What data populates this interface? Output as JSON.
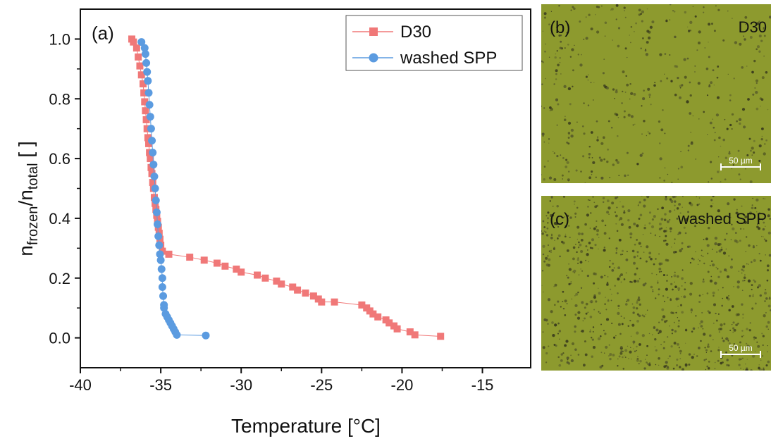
{
  "chart_data": {
    "type": "scatter",
    "panel_label": "(a)",
    "xlabel": "Temperature [°C]",
    "ylabel_parts": [
      "n",
      "frozen",
      "/n",
      "total",
      " [ ]"
    ],
    "xlim": [
      -40,
      -12
    ],
    "ylim": [
      -0.1,
      1.1
    ],
    "xticks": [
      -40,
      -35,
      -30,
      -25,
      -20,
      -15
    ],
    "yticks": [
      0.0,
      0.2,
      0.4,
      0.6,
      0.8,
      1.0
    ],
    "xtick_labels": [
      "-40",
      "-35",
      "-30",
      "-25",
      "-20",
      "-15"
    ],
    "ytick_labels": [
      "0.0",
      "0.2",
      "0.4",
      "0.6",
      "0.8",
      "1.0"
    ],
    "legend_position": "top-right",
    "grid": false,
    "series": [
      {
        "name": "D30",
        "marker": "square",
        "color": "#f07878",
        "x": [
          -36.8,
          -36.7,
          -36.5,
          -36.4,
          -36.3,
          -36.2,
          -36.1,
          -36.05,
          -36.0,
          -35.95,
          -35.9,
          -35.85,
          -35.8,
          -35.75,
          -35.7,
          -35.65,
          -35.6,
          -35.55,
          -35.5,
          -35.45,
          -35.4,
          -35.35,
          -35.3,
          -35.25,
          -35.2,
          -35.15,
          -35.1,
          -35.05,
          -35.0,
          -34.9,
          -34.5,
          -33.2,
          -32.3,
          -31.5,
          -31.0,
          -30.3,
          -30.0,
          -29.0,
          -28.5,
          -27.8,
          -27.5,
          -26.8,
          -26.5,
          -26.0,
          -25.5,
          -25.2,
          -25.0,
          -24.2,
          -22.5,
          -22.2,
          -22.0,
          -21.8,
          -21.5,
          -21.0,
          -20.8,
          -20.5,
          -20.3,
          -19.5,
          -19.2,
          -17.6
        ],
        "y": [
          1.0,
          0.99,
          0.97,
          0.94,
          0.91,
          0.88,
          0.85,
          0.82,
          0.79,
          0.76,
          0.73,
          0.7,
          0.67,
          0.65,
          0.62,
          0.6,
          0.57,
          0.55,
          0.52,
          0.5,
          0.47,
          0.45,
          0.43,
          0.41,
          0.39,
          0.37,
          0.35,
          0.33,
          0.31,
          0.29,
          0.28,
          0.27,
          0.26,
          0.25,
          0.24,
          0.23,
          0.22,
          0.21,
          0.2,
          0.19,
          0.18,
          0.17,
          0.16,
          0.15,
          0.14,
          0.13,
          0.12,
          0.12,
          0.11,
          0.1,
          0.09,
          0.08,
          0.07,
          0.06,
          0.05,
          0.04,
          0.03,
          0.02,
          0.01,
          0.005
        ]
      },
      {
        "name": "washed SPP",
        "marker": "circle",
        "color": "#5b9be0",
        "x": [
          -36.2,
          -36.0,
          -35.95,
          -35.9,
          -35.85,
          -35.8,
          -35.75,
          -35.7,
          -35.65,
          -35.6,
          -35.55,
          -35.5,
          -35.45,
          -35.4,
          -35.35,
          -35.3,
          -35.25,
          -35.2,
          -35.15,
          -35.1,
          -35.05,
          -35.0,
          -34.95,
          -34.9,
          -34.9,
          -34.85,
          -34.8,
          -34.8,
          -34.7,
          -34.6,
          -34.5,
          -34.4,
          -34.3,
          -34.2,
          -34.1,
          -34.0,
          -32.2
        ],
        "y": [
          0.99,
          0.97,
          0.95,
          0.92,
          0.89,
          0.86,
          0.82,
          0.78,
          0.74,
          0.7,
          0.66,
          0.62,
          0.58,
          0.54,
          0.5,
          0.46,
          0.42,
          0.38,
          0.34,
          0.31,
          0.28,
          0.26,
          0.23,
          0.2,
          0.17,
          0.14,
          0.11,
          0.1,
          0.08,
          0.07,
          0.06,
          0.05,
          0.04,
          0.03,
          0.02,
          0.01,
          0.008
        ]
      }
    ]
  },
  "panels": [
    {
      "letter": "(b)",
      "title": "D30",
      "scalebar": "50 µm"
    },
    {
      "letter": "(c)",
      "title": "washed SPP",
      "scalebar": "50 µm"
    }
  ]
}
